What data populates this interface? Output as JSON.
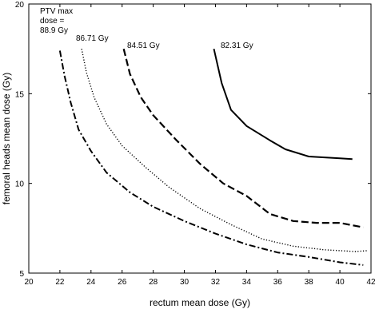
{
  "chart_data": {
    "type": "line",
    "title": "",
    "xlabel": "rectum mean dose (Gy)",
    "ylabel": "femoral heads mean dose (Gy)",
    "xlim": [
      20,
      42
    ],
    "ylim": [
      5,
      20
    ],
    "x_ticks": [
      20,
      22,
      24,
      26,
      28,
      30,
      32,
      34,
      36,
      38,
      40,
      42
    ],
    "y_ticks": [
      5,
      10,
      15,
      20
    ],
    "grid": false,
    "legend": "none",
    "series": [
      {
        "name": "88.9 Gy",
        "label_lines": [
          "PTV max",
          "dose =",
          "88.9 Gy"
        ],
        "line_style": "dash-dot",
        "color": "#000000",
        "x": [
          22.0,
          22.3,
          22.7,
          23.2,
          24.0,
          25.0,
          26.5,
          28.0,
          30.0,
          32.0,
          34.0,
          36.0,
          38.0,
          40.0,
          41.5
        ],
        "y": [
          17.4,
          16.0,
          14.5,
          13.0,
          11.8,
          10.6,
          9.5,
          8.7,
          7.9,
          7.2,
          6.6,
          6.15,
          5.9,
          5.6,
          5.45
        ]
      },
      {
        "name": "86.71 Gy",
        "label_lines": [
          "86.71 Gy"
        ],
        "line_style": "dotted",
        "color": "#000000",
        "x": [
          23.4,
          23.7,
          24.2,
          25.0,
          26.0,
          27.5,
          29.0,
          31.0,
          33.0,
          35.0,
          37.0,
          39.0,
          41.0,
          41.8
        ],
        "y": [
          17.5,
          16.2,
          14.8,
          13.3,
          12.1,
          10.9,
          9.8,
          8.6,
          7.7,
          6.9,
          6.5,
          6.3,
          6.2,
          6.25
        ]
      },
      {
        "name": "84.51 Gy",
        "label_lines": [
          "84.51 Gy"
        ],
        "line_style": "dashed",
        "color": "#000000",
        "x": [
          26.1,
          26.5,
          27.2,
          28.0,
          29.5,
          31.0,
          32.5,
          34.0,
          35.5,
          37.0,
          38.5,
          40.0,
          41.5
        ],
        "y": [
          17.5,
          16.1,
          14.8,
          13.8,
          12.4,
          11.1,
          10.0,
          9.3,
          8.3,
          7.9,
          7.8,
          7.8,
          7.55
        ]
      },
      {
        "name": "82.31 Gy",
        "label_lines": [
          "82.31 Gy"
        ],
        "line_style": "solid",
        "color": "#000000",
        "x": [
          31.9,
          32.4,
          33.0,
          34.0,
          35.5,
          36.5,
          38.0,
          39.0,
          40.0,
          40.8
        ],
        "y": [
          17.5,
          15.6,
          14.1,
          13.2,
          12.4,
          11.9,
          11.5,
          11.45,
          11.4,
          11.35
        ]
      }
    ]
  }
}
